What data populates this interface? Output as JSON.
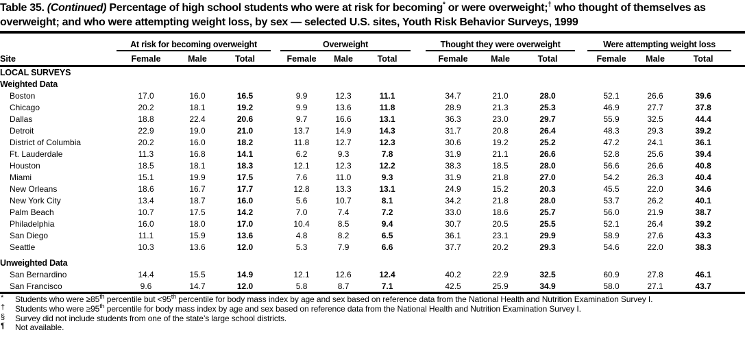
{
  "title": {
    "label": "Table 35.",
    "continued": "(Continued)",
    "seg1": " Percentage of high school students who were at risk for becoming",
    "sup1": "*",
    "seg2": " or were overweight;",
    "sup2": "†",
    "seg3": " who thought of themselves as overweight; and who were attempting weight loss, by sex — selected U.S. sites, Youth Risk Behavior Surveys, 1999"
  },
  "table": {
    "site_header": "Site",
    "sub_headers": [
      "Female",
      "Male",
      "Total"
    ],
    "groups": [
      {
        "label": "At risk for becoming overweight",
        "cols": [
          "Female",
          "Male",
          "Total"
        ]
      },
      {
        "label": "Overweight",
        "cols": [
          "Female",
          "Male",
          "Total"
        ]
      },
      {
        "label": "Thought they were overweight",
        "cols": [
          "Female",
          "Male",
          "Total"
        ]
      },
      {
        "label": "Were attempting weight loss",
        "cols": [
          "Female",
          "Male",
          "Total"
        ]
      }
    ],
    "body": [
      {
        "type": "label",
        "text": "LOCAL SURVEYS"
      },
      {
        "type": "label",
        "text": "Weighted Data"
      },
      {
        "type": "row",
        "site": "Boston",
        "values": [
          "17.0",
          "16.0",
          "16.5",
          "9.9",
          "12.3",
          "11.1",
          "34.7",
          "21.0",
          "28.0",
          "52.1",
          "26.6",
          "39.6"
        ]
      },
      {
        "type": "row",
        "site": "Chicago",
        "values": [
          "20.2",
          "18.1",
          "19.2",
          "9.9",
          "13.6",
          "11.8",
          "28.9",
          "21.3",
          "25.3",
          "46.9",
          "27.7",
          "37.8"
        ]
      },
      {
        "type": "row",
        "site": "Dallas",
        "values": [
          "18.8",
          "22.4",
          "20.6",
          "9.7",
          "16.6",
          "13.1",
          "36.3",
          "23.0",
          "29.7",
          "55.9",
          "32.5",
          "44.4"
        ]
      },
      {
        "type": "row",
        "site": "Detroit",
        "values": [
          "22.9",
          "19.0",
          "21.0",
          "13.7",
          "14.9",
          "14.3",
          "31.7",
          "20.8",
          "26.4",
          "48.3",
          "29.3",
          "39.2"
        ]
      },
      {
        "type": "row",
        "site": "District of Columbia",
        "values": [
          "20.2",
          "16.0",
          "18.2",
          "11.8",
          "12.7",
          "12.3",
          "30.6",
          "19.2",
          "25.2",
          "47.2",
          "24.1",
          "36.1"
        ]
      },
      {
        "type": "row",
        "site": "Ft. Lauderdale",
        "values": [
          "11.3",
          "16.8",
          "14.1",
          "6.2",
          "9.3",
          "7.8",
          "31.9",
          "21.1",
          "26.6",
          "52.8",
          "25.6",
          "39.4"
        ]
      },
      {
        "type": "row",
        "site": "Houston",
        "values": [
          "18.5",
          "18.1",
          "18.3",
          "12.1",
          "12.3",
          "12.2",
          "38.3",
          "18.5",
          "28.0",
          "56.6",
          "26.6",
          "40.8"
        ]
      },
      {
        "type": "row",
        "site": "Miami",
        "values": [
          "15.1",
          "19.9",
          "17.5",
          "7.6",
          "11.0",
          "9.3",
          "31.9",
          "21.8",
          "27.0",
          "54.2",
          "26.3",
          "40.4"
        ]
      },
      {
        "type": "row",
        "site": "New Orleans",
        "values": [
          "18.6",
          "16.7",
          "17.7",
          "12.8",
          "13.3",
          "13.1",
          "24.9",
          "15.2",
          "20.3",
          "45.5",
          "22.0",
          "34.6"
        ]
      },
      {
        "type": "row",
        "site": "New York City",
        "values": [
          "13.4",
          "18.7",
          "16.0",
          "5.6",
          "10.7",
          "8.1",
          "34.2",
          "21.8",
          "28.0",
          "53.7",
          "26.2",
          "40.1"
        ]
      },
      {
        "type": "row",
        "site": "Palm Beach",
        "values": [
          "10.7",
          "17.5",
          "14.2",
          "7.0",
          "7.4",
          "7.2",
          "33.0",
          "18.6",
          "25.7",
          "56.0",
          "21.9",
          "38.7"
        ]
      },
      {
        "type": "row",
        "site": "Philadelphia",
        "values": [
          "16.0",
          "18.0",
          "17.0",
          "10.4",
          "8.5",
          "9.4",
          "30.7",
          "20.5",
          "25.5",
          "52.1",
          "26.4",
          "39.2"
        ]
      },
      {
        "type": "row",
        "site": "San Diego",
        "values": [
          "11.1",
          "15.9",
          "13.6",
          "4.8",
          "8.2",
          "6.5",
          "36.1",
          "23.1",
          "29.9",
          "58.9",
          "27.6",
          "43.3"
        ]
      },
      {
        "type": "row",
        "site": "Seattle",
        "values": [
          "10.3",
          "13.6",
          "12.0",
          "5.3",
          "7.9",
          "6.6",
          "37.7",
          "20.2",
          "29.3",
          "54.6",
          "22.0",
          "38.3"
        ]
      },
      {
        "type": "spacer"
      },
      {
        "type": "label",
        "text": "Unweighted Data"
      },
      {
        "type": "row",
        "site": "San Bernardino",
        "values": [
          "14.4",
          "15.5",
          "14.9",
          "12.1",
          "12.6",
          "12.4",
          "40.2",
          "22.9",
          "32.5",
          "60.9",
          "27.8",
          "46.1"
        ]
      },
      {
        "type": "row",
        "site": "San Francisco",
        "values": [
          "9.6",
          "14.7",
          "12.0",
          "5.8",
          "8.7",
          "7.1",
          "42.5",
          "25.9",
          "34.9",
          "58.0",
          "27.1",
          "43.7"
        ]
      }
    ]
  },
  "footnotes": [
    {
      "marker": "*",
      "segments": [
        {
          "t": "Students who were ≥85"
        },
        {
          "sup": "th"
        },
        {
          "t": " percentile but <95"
        },
        {
          "sup": "th"
        },
        {
          "t": " percentile for body mass index by age and sex based on reference data from the National Health and Nutrition Examination Survey I."
        }
      ]
    },
    {
      "marker": "†",
      "segments": [
        {
          "t": "Students who were ≥95"
        },
        {
          "sup": "th"
        },
        {
          "t": " percentile for body mass index by age and sex based on reference data from the National Health and Nutrition Examination Survey I."
        }
      ]
    },
    {
      "marker": "§",
      "segments": [
        {
          "t": "Survey did not include students from one of the state’s large school districts."
        }
      ]
    },
    {
      "marker": "¶",
      "segments": [
        {
          "t": "Not available."
        }
      ]
    }
  ]
}
